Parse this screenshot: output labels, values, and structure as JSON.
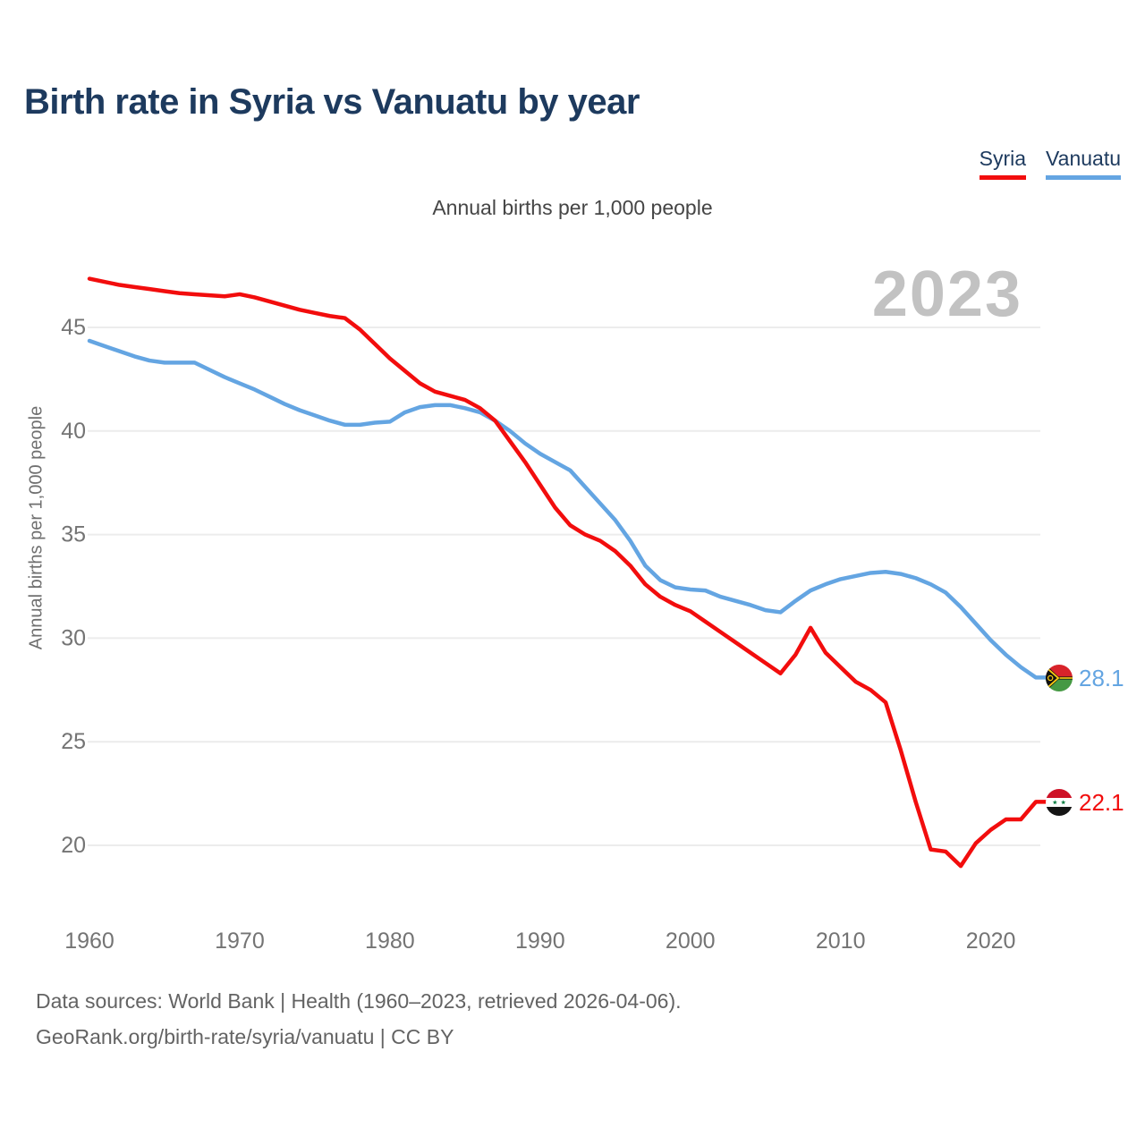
{
  "page": {
    "title": "Birth rate in Syria vs Vanuatu by year",
    "subtitle": "Annual births per 1,000 people",
    "watermark": "2023",
    "y_axis_title": "Annual births per 1,000 people",
    "footer_line1": "Data sources: World Bank | Health (1960–2023, retrieved 2026-04-06).",
    "footer_line2": "GeoRank.org/birth-rate/syria/vanuatu | CC BY"
  },
  "legend": {
    "items": [
      {
        "label": "Syria",
        "color": "#f20d0d"
      },
      {
        "label": "Vanuatu",
        "color": "#64a5e2"
      }
    ]
  },
  "end_labels": [
    {
      "series": "Vanuatu",
      "value": "28.1",
      "color": "#64a5e2",
      "flag_icon": "vanuatu-flag"
    },
    {
      "series": "Syria",
      "value": "22.1",
      "color": "#f20d0d",
      "flag_icon": "syria-flag"
    }
  ],
  "chart_data": {
    "type": "line",
    "title": "Birth rate in Syria vs Vanuatu by year",
    "subtitle": "Annual births per 1,000 people",
    "xlabel": "",
    "ylabel": "Annual births per 1,000 people",
    "xlim": [
      1960,
      2023
    ],
    "ylim": [
      17.5,
      48.5
    ],
    "xticks": [
      1960,
      1970,
      1980,
      1990,
      2000,
      2010,
      2020
    ],
    "yticks": [
      20,
      25,
      30,
      35,
      40,
      45
    ],
    "grid": "horizontal",
    "legend_position": "top-right",
    "x": [
      1960,
      1961,
      1962,
      1963,
      1964,
      1965,
      1966,
      1967,
      1968,
      1969,
      1970,
      1971,
      1972,
      1973,
      1974,
      1975,
      1976,
      1977,
      1978,
      1979,
      1980,
      1981,
      1982,
      1983,
      1984,
      1985,
      1986,
      1987,
      1988,
      1989,
      1990,
      1991,
      1992,
      1993,
      1994,
      1995,
      1996,
      1997,
      1998,
      1999,
      2000,
      2001,
      2002,
      2003,
      2004,
      2005,
      2006,
      2007,
      2008,
      2009,
      2010,
      2011,
      2012,
      2013,
      2014,
      2015,
      2016,
      2017,
      2018,
      2019,
      2020,
      2021,
      2022,
      2023
    ],
    "series": [
      {
        "name": "Vanuatu",
        "color": "#64a5e2",
        "end_value": 28.1,
        "values": [
          44.35,
          44.1,
          43.85,
          43.6,
          43.4,
          43.3,
          43.3,
          43.3,
          42.95,
          42.6,
          42.3,
          42.0,
          41.65,
          41.3,
          41.0,
          40.75,
          40.5,
          40.3,
          40.3,
          40.4,
          40.45,
          40.9,
          41.15,
          41.25,
          41.25,
          41.1,
          40.9,
          40.5,
          40.0,
          39.4,
          38.9,
          38.5,
          38.1,
          37.3,
          36.5,
          35.7,
          34.7,
          33.5,
          32.8,
          32.45,
          32.35,
          32.3,
          32.0,
          31.8,
          31.6,
          31.35,
          31.25,
          31.8,
          32.3,
          32.6,
          32.85,
          33.0,
          33.15,
          33.2,
          33.1,
          32.9,
          32.6,
          32.2,
          31.5,
          30.7,
          29.9,
          29.2,
          28.6,
          28.1
        ]
      },
      {
        "name": "Syria",
        "color": "#f20d0d",
        "end_value": 22.1,
        "values": [
          47.35,
          47.2,
          47.05,
          46.95,
          46.85,
          46.75,
          46.65,
          46.6,
          46.55,
          46.5,
          46.6,
          46.45,
          46.25,
          46.05,
          45.85,
          45.7,
          45.55,
          45.45,
          44.9,
          44.2,
          43.5,
          42.9,
          42.3,
          41.9,
          41.7,
          41.5,
          41.1,
          40.5,
          39.5,
          38.5,
          37.4,
          36.3,
          35.45,
          35.0,
          34.7,
          34.2,
          33.5,
          32.6,
          32.0,
          31.6,
          31.3,
          30.8,
          30.3,
          29.8,
          29.3,
          28.8,
          28.3,
          29.2,
          30.5,
          29.3,
          28.6,
          27.9,
          27.5,
          26.9,
          24.6,
          22.1,
          19.8,
          19.7,
          19.0,
          20.1,
          20.75,
          21.25,
          21.25,
          22.1
        ]
      }
    ]
  }
}
